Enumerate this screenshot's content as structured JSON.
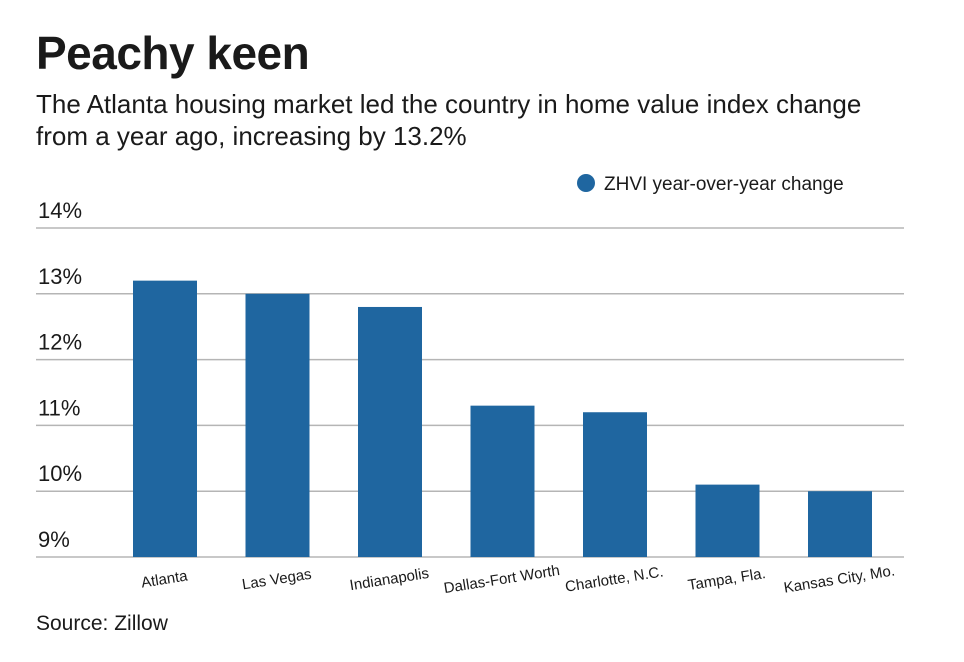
{
  "title": "Peachy keen",
  "subtitle": "The Atlanta housing market led the country in home value index change from a year ago, increasing by 13.2%",
  "source": "Source: Zillow",
  "chart_data": {
    "type": "bar",
    "categories": [
      "Atlanta",
      "Las Vegas",
      "Indianapolis",
      "Dallas-Fort Worth",
      "Charlotte, N.C.",
      "Tampa, Fla.",
      "Kansas City, Mo."
    ],
    "series": [
      {
        "name": "ZHVI year-over-year change",
        "values": [
          13.2,
          13.0,
          12.8,
          11.3,
          11.2,
          10.1,
          10.0
        ]
      }
    ],
    "y_ticks": [
      "9%",
      "10%",
      "11%",
      "12%",
      "13%",
      "14%"
    ],
    "ylim": [
      9,
      14
    ],
    "grid": true,
    "legend_position": "top-right",
    "bar_color": "#1f66a0",
    "grid_color": "#b5b5b5"
  }
}
